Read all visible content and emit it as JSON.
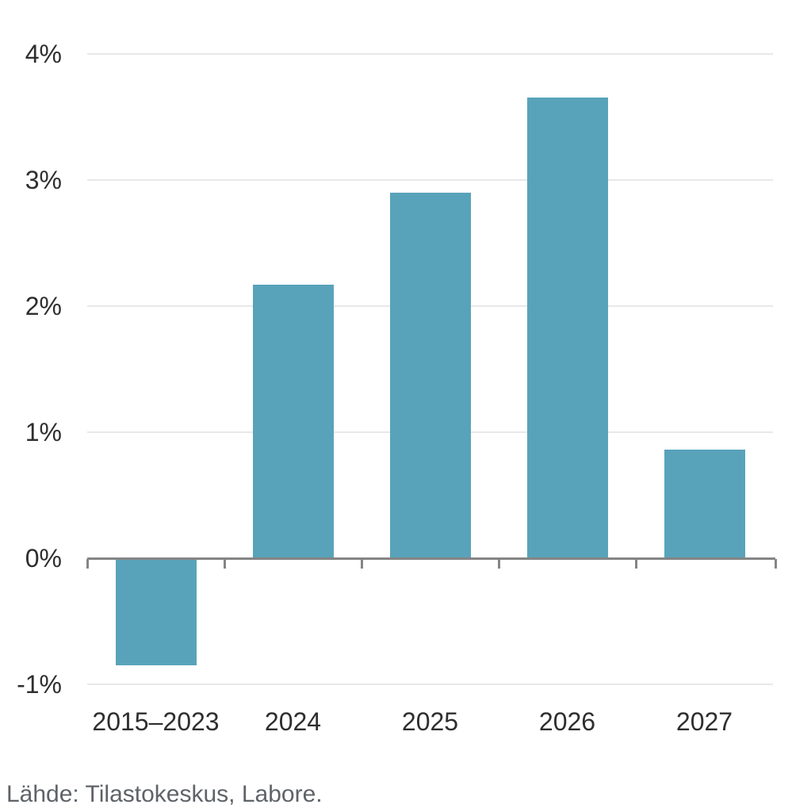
{
  "source_note": "Lähde: Tilastokeskus, Labore.",
  "chart_data": {
    "type": "bar",
    "title": "",
    "xlabel": "",
    "ylabel": "",
    "unit": "%",
    "categories": [
      "2015–2023",
      "2024",
      "2025",
      "2026",
      "2027"
    ],
    "values": [
      -0.85,
      2.17,
      2.9,
      3.65,
      0.86
    ],
    "ylim": [
      -1.3,
      4.4
    ],
    "yticks": [
      {
        "label": "4%",
        "value": 4
      },
      {
        "label": "3%",
        "value": 3
      },
      {
        "label": "2%",
        "value": 2
      },
      {
        "label": "1%",
        "value": 1
      },
      {
        "label": "0%",
        "value": 0
      },
      {
        "label": "-1%",
        "value": -1
      }
    ],
    "grid": true,
    "legend": "none",
    "colors": {
      "bar": "#58a3ba",
      "gridline": "#e8e8e8",
      "axis_line": "#858585",
      "tick_label": "#2e2e2e",
      "source_text": "#5f6368",
      "background": "#ffffff"
    }
  }
}
